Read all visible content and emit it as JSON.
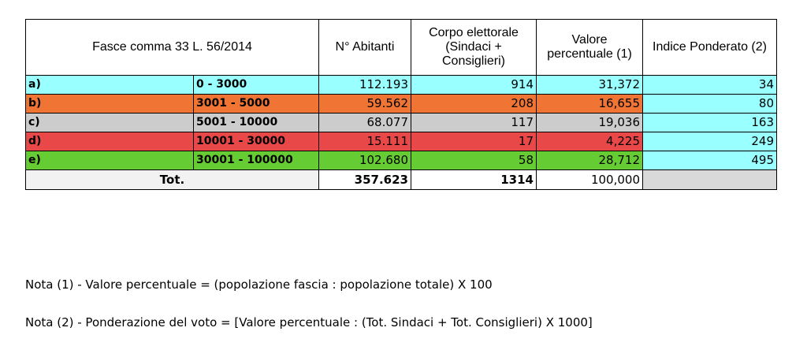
{
  "headers": {
    "fasce": "Fasce comma 33 L. 56/2014",
    "abitanti": "N° Abitanti",
    "corpo": "Corpo elettorale (Sindaci + Consiglieri)",
    "valore": "Valore percentuale (1)",
    "indice": "Indice Ponderato (2)"
  },
  "rows": [
    {
      "code": "a)",
      "range": "0 - 3000",
      "abitanti": "112.193",
      "corpo": "914",
      "valore": "31,372",
      "indice": "34",
      "color": "#99ffff"
    },
    {
      "code": "b)",
      "range": "3001 - 5000",
      "abitanti": "59.562",
      "corpo": "208",
      "valore": "16,655",
      "indice": "80",
      "color": "#f07535"
    },
    {
      "code": "c)",
      "range": "5001 - 10000",
      "abitanti": "68.077",
      "corpo": "117",
      "valore": "19,036",
      "indice": "163",
      "color": "#cccccc"
    },
    {
      "code": "d)",
      "range": "10001 - 30000",
      "abitanti": "15.111",
      "corpo": "17",
      "valore": "4,225",
      "indice": "249",
      "color": "#e84848"
    },
    {
      "code": "e)",
      "range": "30001 - 100000",
      "abitanti": "102.680",
      "corpo": "58",
      "valore": "28,712",
      "indice": "495",
      "color": "#66cc33"
    }
  ],
  "indice_color": "#99ffff",
  "total": {
    "label": "Tot.",
    "abitanti": "357.623",
    "corpo": "1314",
    "valore": "100,000"
  },
  "notes": {
    "note1": "Nota (1) - Valore percentuale = (popolazione fascia : popolazione totale) X 100",
    "note2": "Nota (2) - Ponderazione del voto = [Valore percentuale : (Tot. Sindaci + Tot. Consiglieri) X 1000]"
  }
}
